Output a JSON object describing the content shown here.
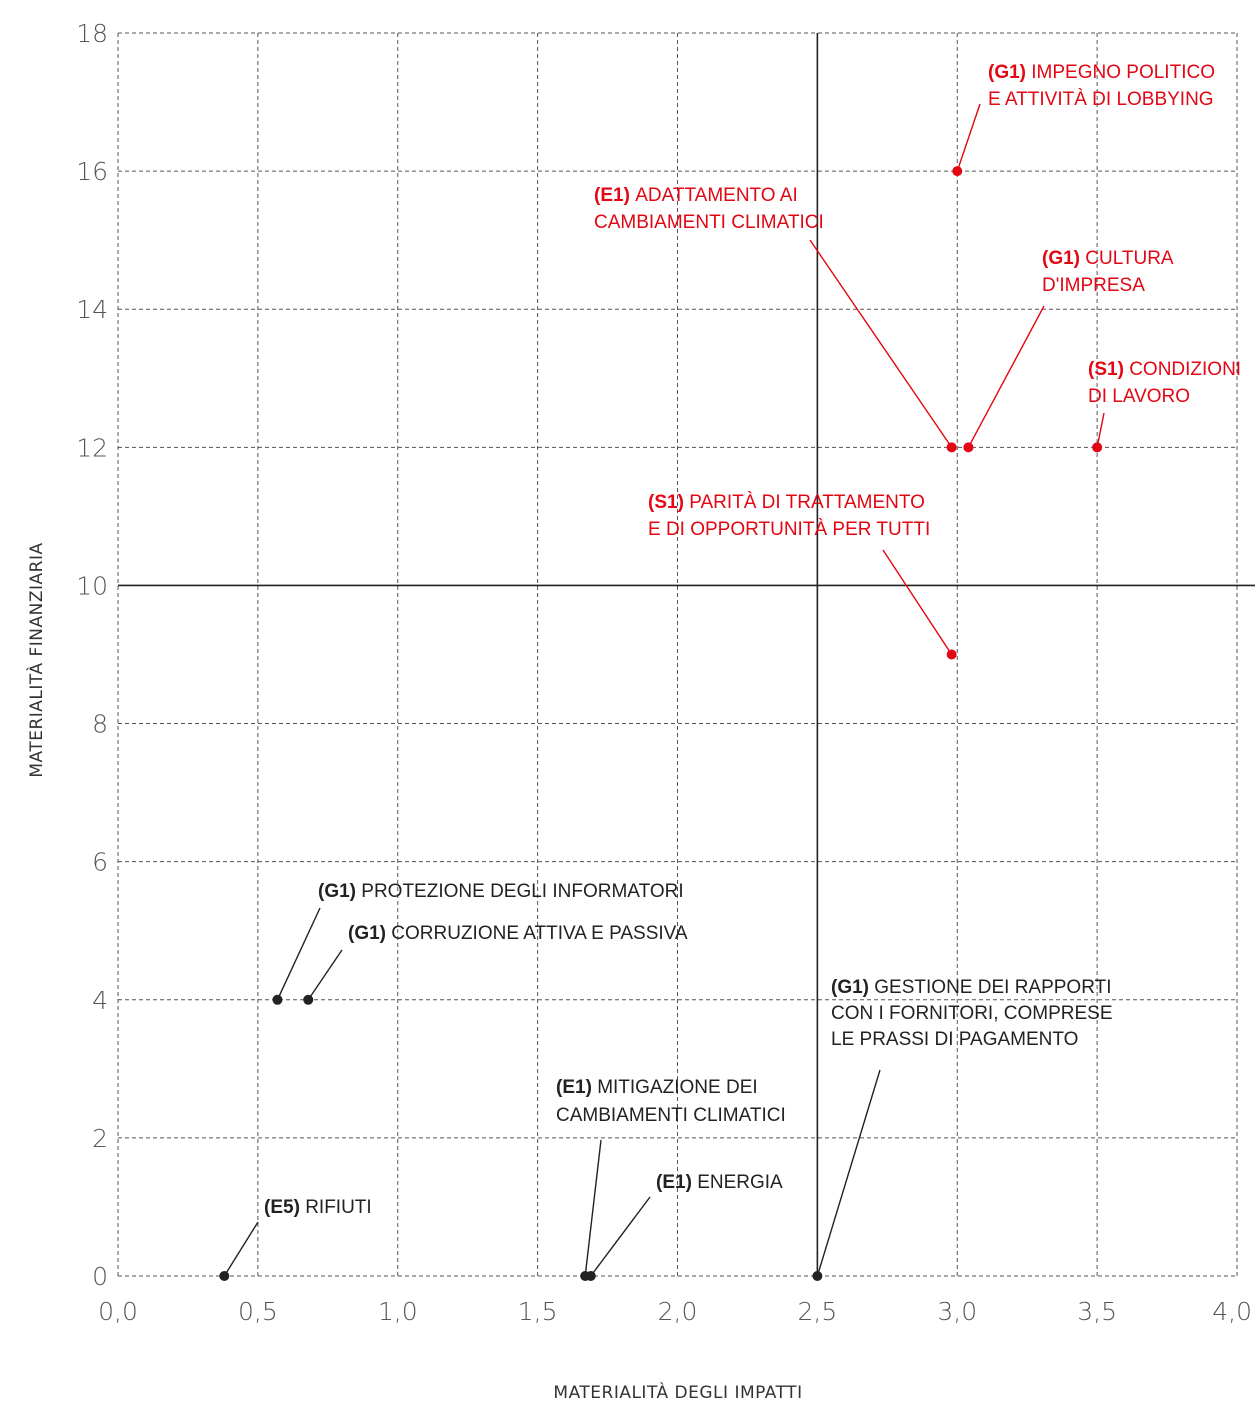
{
  "colors": {
    "material": "#e30613",
    "non_material": "#222222",
    "grid": "#555555"
  },
  "chart_data": {
    "type": "scatter",
    "xlabel": "MATERIALITÀ DEGLI IMPATTI",
    "ylabel": "MATERIALITÀ FINANZIARIA",
    "xlim": [
      0,
      4
    ],
    "ylim": [
      0,
      18
    ],
    "x_ticks": [
      "0,0",
      "0,5",
      "1,0",
      "1,5",
      "2,0",
      "2,5",
      "3,0",
      "3,5",
      "4,0"
    ],
    "y_ticks": [
      "0",
      "2",
      "4",
      "6",
      "8",
      "10",
      "12",
      "14",
      "16",
      "18"
    ],
    "grid": true,
    "threshold": {
      "x": 2.5,
      "y": 10
    },
    "points": [
      {
        "code": "(G1)",
        "lines": [
          "IMPEGNO POLITICO",
          "E ATTIVITÀ DI LOBBYING"
        ],
        "x": 3.0,
        "y": 16,
        "material": true
      },
      {
        "code": "(E1)",
        "lines": [
          "ADATTAMENTO AI",
          "CAMBIAMENTI CLIMATICI"
        ],
        "x": 2.98,
        "y": 12,
        "material": true
      },
      {
        "code": "(G1)",
        "lines": [
          "CULTURA",
          "D'IMPRESA"
        ],
        "x": 3.04,
        "y": 12,
        "material": true
      },
      {
        "code": "(S1)",
        "lines": [
          "CONDIZIONI",
          "DI LAVORO"
        ],
        "x": 3.5,
        "y": 12,
        "material": true
      },
      {
        "code": "(S1)",
        "lines": [
          "PARITÀ DI TRATTAMENTO",
          "E DI OPPORTUNITÀ PER TUTTI"
        ],
        "x": 2.98,
        "y": 9,
        "material": true
      },
      {
        "code": "(G1)",
        "lines": [
          "PROTEZIONE DEGLI INFORMATORI"
        ],
        "x": 0.57,
        "y": 4,
        "material": false
      },
      {
        "code": "(G1)",
        "lines": [
          "CORRUZIONE ATTIVA E PASSIVA"
        ],
        "x": 0.68,
        "y": 4,
        "material": false
      },
      {
        "code": "(G1)",
        "lines": [
          "GESTIONE DEI RAPPORTI",
          "CON I FORNITORI, COMPRESE",
          "LE PRASSI DI PAGAMENTO"
        ],
        "x": 2.5,
        "y": 0,
        "material": false
      },
      {
        "code": "(E1)",
        "lines": [
          "MITIGAZIONE DEI",
          "CAMBIAMENTI CLIMATICI"
        ],
        "x": 1.67,
        "y": 0,
        "material": false
      },
      {
        "code": "(E1)",
        "lines": [
          "ENERGIA"
        ],
        "x": 1.69,
        "y": 0,
        "material": false
      },
      {
        "code": "(E5)",
        "lines": [
          "RIFIUTI"
        ],
        "x": 0.38,
        "y": 0,
        "material": false
      }
    ]
  }
}
